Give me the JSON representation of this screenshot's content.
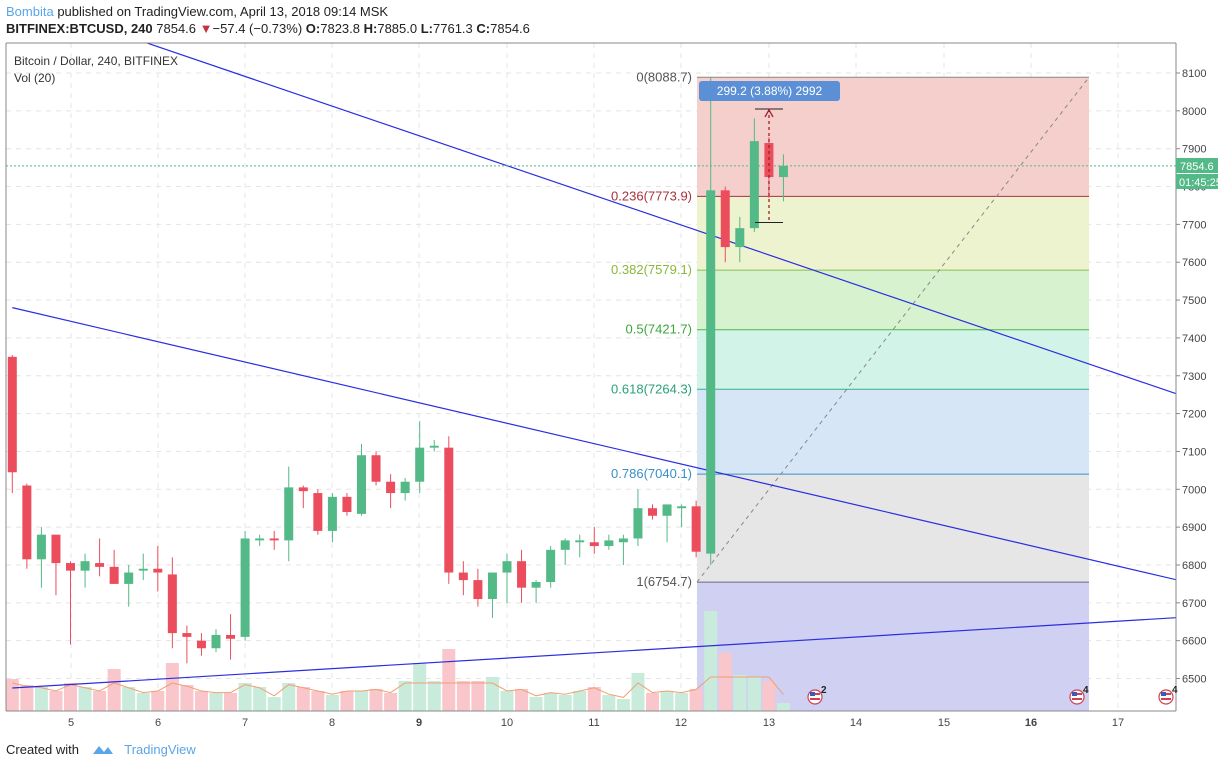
{
  "header": {
    "author": "Bombita",
    "published_text": "published on TradingView.com, April 13, 2018 09:14 MSK",
    "symbol": "BITFINEX:BTCUSD, 240",
    "last": "7854.6",
    "arrow": "▼",
    "change": "−57.4 (−0.73%)",
    "o_label": "O:",
    "o": "7823.8",
    "h_label": "H:",
    "h": "7885.0",
    "l_label": "L:",
    "l": "7761.3",
    "c_label": "C:",
    "c": "7854.6"
  },
  "legend": {
    "title": "Bitcoin / Dollar, 240, BITFINEX",
    "vol": "Vol (20)"
  },
  "footer": {
    "created": "Created with",
    "brand": "TradingView"
  },
  "price_tag": "7854.6",
  "countdown": "01:45:25",
  "measure_label": "299.2 (3.88%) 2992",
  "colors": {
    "up": "#53b987",
    "down": "#eb4d5c",
    "up_vol": "#c9ebdb",
    "down_vol": "#f8c6cb",
    "trendline": "#2a2ee0",
    "ma": "#f0a070"
  },
  "chart_data": {
    "type": "candlestick",
    "title": "Bitcoin / Dollar, 240, BITFINEX",
    "ylim": [
      6420,
      8140
    ],
    "y_ticks": [
      6500,
      6600,
      6700,
      6800,
      6900,
      7000,
      7100,
      7200,
      7300,
      7400,
      7500,
      7600,
      7700,
      7800,
      7900,
      8000,
      8100
    ],
    "x_ticks": [
      "5",
      "6",
      "7",
      "8",
      "9",
      "10",
      "11",
      "12",
      "13",
      "14",
      "15",
      "16",
      "17"
    ],
    "grid": true,
    "fib_levels": [
      {
        "label": "0(8088.7)",
        "ratio": 0,
        "value": 8088.7
      },
      {
        "label": "0.236(7773.9)",
        "ratio": 0.236,
        "value": 7773.9
      },
      {
        "label": "0.382(7579.1)",
        "ratio": 0.382,
        "value": 7579.1
      },
      {
        "label": "0.5(7421.7)",
        "ratio": 0.5,
        "value": 7421.7
      },
      {
        "label": "0.618(7264.3)",
        "ratio": 0.618,
        "value": 7264.3
      },
      {
        "label": "0.786(7040.1)",
        "ratio": 0.786,
        "value": 7040.1
      },
      {
        "label": "1(6754.7)",
        "ratio": 1,
        "value": 6754.7
      }
    ],
    "current_price": 7854.6,
    "candles": [
      {
        "o": 7350,
        "h": 7355,
        "l": 6990,
        "c": 7045
      },
      {
        "o": 7010,
        "h": 7015,
        "l": 6790,
        "c": 6815
      },
      {
        "o": 6815,
        "h": 6900,
        "l": 6740,
        "c": 6880
      },
      {
        "o": 6880,
        "h": 6880,
        "l": 6720,
        "c": 6805
      },
      {
        "o": 6805,
        "h": 6810,
        "l": 6590,
        "c": 6785
      },
      {
        "o": 6785,
        "h": 6830,
        "l": 6740,
        "c": 6810
      },
      {
        "o": 6805,
        "h": 6870,
        "l": 6770,
        "c": 6795
      },
      {
        "o": 6795,
        "h": 6840,
        "l": 6750,
        "c": 6750
      },
      {
        "o": 6750,
        "h": 6800,
        "l": 6690,
        "c": 6780
      },
      {
        "o": 6785,
        "h": 6830,
        "l": 6760,
        "c": 6790
      },
      {
        "o": 6790,
        "h": 6850,
        "l": 6730,
        "c": 6780
      },
      {
        "o": 6775,
        "h": 6820,
        "l": 6580,
        "c": 6620
      },
      {
        "o": 6620,
        "h": 6640,
        "l": 6540,
        "c": 6610
      },
      {
        "o": 6600,
        "h": 6620,
        "l": 6560,
        "c": 6580
      },
      {
        "o": 6580,
        "h": 6630,
        "l": 6570,
        "c": 6615
      },
      {
        "o": 6615,
        "h": 6670,
        "l": 6550,
        "c": 6605
      },
      {
        "o": 6610,
        "h": 6890,
        "l": 6600,
        "c": 6870
      },
      {
        "o": 6865,
        "h": 6880,
        "l": 6850,
        "c": 6870
      },
      {
        "o": 6870,
        "h": 6890,
        "l": 6840,
        "c": 6865
      },
      {
        "o": 6865,
        "h": 7060,
        "l": 6810,
        "c": 7005
      },
      {
        "o": 7005,
        "h": 7010,
        "l": 6950,
        "c": 6995
      },
      {
        "o": 6990,
        "h": 7000,
        "l": 6880,
        "c": 6890
      },
      {
        "o": 6890,
        "h": 6990,
        "l": 6860,
        "c": 6980
      },
      {
        "o": 6980,
        "h": 6990,
        "l": 6930,
        "c": 6940
      },
      {
        "o": 6935,
        "h": 7120,
        "l": 6930,
        "c": 7090
      },
      {
        "o": 7090,
        "h": 7100,
        "l": 7010,
        "c": 7020
      },
      {
        "o": 7020,
        "h": 7040,
        "l": 6950,
        "c": 6990
      },
      {
        "o": 6990,
        "h": 7030,
        "l": 6970,
        "c": 7020
      },
      {
        "o": 7020,
        "h": 7180,
        "l": 6990,
        "c": 7110
      },
      {
        "o": 7110,
        "h": 7130,
        "l": 7100,
        "c": 7115
      },
      {
        "o": 7110,
        "h": 7140,
        "l": 6750,
        "c": 6780
      },
      {
        "o": 6780,
        "h": 6810,
        "l": 6720,
        "c": 6760
      },
      {
        "o": 6760,
        "h": 6790,
        "l": 6690,
        "c": 6710
      },
      {
        "o": 6710,
        "h": 6770,
        "l": 6660,
        "c": 6780
      },
      {
        "o": 6780,
        "h": 6830,
        "l": 6700,
        "c": 6810
      },
      {
        "o": 6810,
        "h": 6840,
        "l": 6700,
        "c": 6740
      },
      {
        "o": 6740,
        "h": 6760,
        "l": 6700,
        "c": 6755
      },
      {
        "o": 6755,
        "h": 6850,
        "l": 6740,
        "c": 6840
      },
      {
        "o": 6840,
        "h": 6870,
        "l": 6800,
        "c": 6865
      },
      {
        "o": 6860,
        "h": 6880,
        "l": 6820,
        "c": 6865
      },
      {
        "o": 6860,
        "h": 6900,
        "l": 6830,
        "c": 6850
      },
      {
        "o": 6850,
        "h": 6880,
        "l": 6840,
        "c": 6865
      },
      {
        "o": 6860,
        "h": 6880,
        "l": 6800,
        "c": 6870
      },
      {
        "o": 6870,
        "h": 7000,
        "l": 6850,
        "c": 6950
      },
      {
        "o": 6950,
        "h": 6960,
        "l": 6920,
        "c": 6930
      },
      {
        "o": 6930,
        "h": 6960,
        "l": 6860,
        "c": 6960
      },
      {
        "o": 6950,
        "h": 6960,
        "l": 6900,
        "c": 6955
      },
      {
        "o": 6955,
        "h": 6970,
        "l": 6820,
        "c": 6835
      },
      {
        "o": 6830,
        "h": 8090,
        "l": 6800,
        "c": 7790
      },
      {
        "o": 7790,
        "h": 7800,
        "l": 7600,
        "c": 7640
      },
      {
        "o": 7640,
        "h": 7720,
        "l": 7600,
        "c": 7690
      },
      {
        "o": 7690,
        "h": 7980,
        "l": 7680,
        "c": 7920
      },
      {
        "o": 7915,
        "h": 7930,
        "l": 7770,
        "c": 7825
      },
      {
        "o": 7825,
        "h": 7885,
        "l": 7761,
        "c": 7855
      }
    ],
    "volume": [
      {
        "v": 0.32,
        "up": false
      },
      {
        "v": 0.26,
        "up": false
      },
      {
        "v": 0.24,
        "up": true
      },
      {
        "v": 0.2,
        "up": false
      },
      {
        "v": 0.28,
        "up": false
      },
      {
        "v": 0.24,
        "up": true
      },
      {
        "v": 0.2,
        "up": false
      },
      {
        "v": 0.42,
        "up": false
      },
      {
        "v": 0.24,
        "up": true
      },
      {
        "v": 0.18,
        "up": true
      },
      {
        "v": 0.2,
        "up": false
      },
      {
        "v": 0.48,
        "up": false
      },
      {
        "v": 0.26,
        "up": false
      },
      {
        "v": 0.2,
        "up": false
      },
      {
        "v": 0.18,
        "up": true
      },
      {
        "v": 0.18,
        "up": false
      },
      {
        "v": 0.28,
        "up": true
      },
      {
        "v": 0.24,
        "up": true
      },
      {
        "v": 0.14,
        "up": true
      },
      {
        "v": 0.28,
        "up": true
      },
      {
        "v": 0.24,
        "up": false
      },
      {
        "v": 0.2,
        "up": false
      },
      {
        "v": 0.16,
        "up": true
      },
      {
        "v": 0.2,
        "up": false
      },
      {
        "v": 0.2,
        "up": true
      },
      {
        "v": 0.22,
        "up": false
      },
      {
        "v": 0.18,
        "up": false
      },
      {
        "v": 0.3,
        "up": true
      },
      {
        "v": 0.48,
        "up": true
      },
      {
        "v": 0.3,
        "up": true
      },
      {
        "v": 0.62,
        "up": false
      },
      {
        "v": 0.3,
        "up": false
      },
      {
        "v": 0.3,
        "up": false
      },
      {
        "v": 0.34,
        "up": true
      },
      {
        "v": 0.2,
        "up": true
      },
      {
        "v": 0.22,
        "up": false
      },
      {
        "v": 0.14,
        "up": true
      },
      {
        "v": 0.18,
        "up": true
      },
      {
        "v": 0.16,
        "up": true
      },
      {
        "v": 0.2,
        "up": true
      },
      {
        "v": 0.24,
        "up": false
      },
      {
        "v": 0.16,
        "up": true
      },
      {
        "v": 0.12,
        "up": true
      },
      {
        "v": 0.38,
        "up": true
      },
      {
        "v": 0.18,
        "up": false
      },
      {
        "v": 0.2,
        "up": true
      },
      {
        "v": 0.18,
        "up": true
      },
      {
        "v": 0.22,
        "up": false
      },
      {
        "v": 1.0,
        "up": true
      },
      {
        "v": 0.58,
        "up": false
      },
      {
        "v": 0.36,
        "up": true
      },
      {
        "v": 0.34,
        "up": true
      },
      {
        "v": 0.3,
        "up": false
      },
      {
        "v": 0.08,
        "up": true
      }
    ],
    "trendlines": [
      {
        "name": "upper-descending",
        "x1": -5.3,
        "y1": 8370,
        "x2": 84,
        "y2": 7200
      },
      {
        "name": "mid-descending",
        "x1": 0,
        "y1": 7480,
        "x2": 84,
        "y2": 6725
      },
      {
        "name": "rising-support",
        "x1": 0,
        "y1": 6475,
        "x2": 84,
        "y2": 6670
      }
    ]
  }
}
